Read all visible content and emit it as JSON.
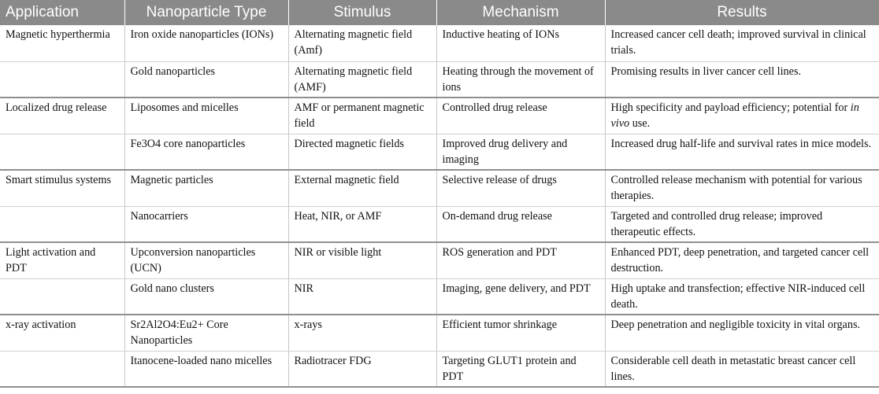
{
  "table": {
    "headers": [
      "Application",
      "Nanoparticle Type",
      "Stimulus",
      "Mechanism",
      "Results"
    ],
    "rows": [
      {
        "application": "Magnetic hyperthermia",
        "nanoparticle": "Iron oxide nanoparticles (IONs)",
        "stimulus": "Alternating magnetic field (Amf)",
        "mechanism": "Inductive heating of IONs",
        "results": "Increased cancer cell death; improved survival in clinical trials."
      },
      {
        "application": "",
        "nanoparticle": "Gold nanoparticles",
        "stimulus": "Alternating magnetic field (AMF)",
        "mechanism": "Heating through the movement of ions",
        "results": "Promising results in liver cancer cell lines."
      },
      {
        "application": "Localized drug release",
        "nanoparticle": "Liposomes and micelles",
        "stimulus": "AMF or permanent magnetic field",
        "mechanism": "Controlled drug release",
        "results_pre": "High specificity and payload efficiency; potential for ",
        "results_italic": "in vivo",
        "results_post": " use."
      },
      {
        "application": "",
        "nanoparticle": "Fe3O4 core nanoparticles",
        "stimulus": "Directed magnetic fields",
        "mechanism": "Improved drug delivery and imaging",
        "results": "Increased drug half-life and survival rates in mice models."
      },
      {
        "application": "Smart stimulus systems",
        "nanoparticle": "Magnetic particles",
        "stimulus": "External magnetic field",
        "mechanism": "Selective release of drugs",
        "results": "Controlled release mechanism with potential for various therapies."
      },
      {
        "application": "",
        "nanoparticle": "Nanocarriers",
        "stimulus": "Heat, NIR, or AMF",
        "mechanism": "On-demand drug release",
        "results": "Targeted and controlled drug release; improved therapeutic effects."
      },
      {
        "application": "Light activation and PDT",
        "nanoparticle": "Upconversion nanoparticles (UCN)",
        "stimulus": "NIR or visible light",
        "mechanism": "ROS generation and PDT",
        "results": "Enhanced PDT, deep penetration, and targeted cancer cell destruction."
      },
      {
        "application": "",
        "nanoparticle": "Gold nano clusters",
        "stimulus": "NIR",
        "mechanism": "Imaging, gene delivery, and PDT",
        "results": "High uptake and transfection; effective NIR-induced cell death."
      },
      {
        "application": "x-ray activation",
        "nanoparticle": "Sr2Al2O4:Eu2+ Core Nanoparticles",
        "stimulus": "x-rays",
        "mechanism": "Efficient tumor shrinkage",
        "results": "Deep penetration and negligible toxicity in vital organs."
      },
      {
        "application": "",
        "nanoparticle": "Itanocene-loaded nano micelles",
        "stimulus": "Radiotracer FDG",
        "mechanism": "Targeting GLUT1 protein and PDT",
        "results": "Considerable cell death in metastatic breast cancer cell lines."
      }
    ]
  }
}
